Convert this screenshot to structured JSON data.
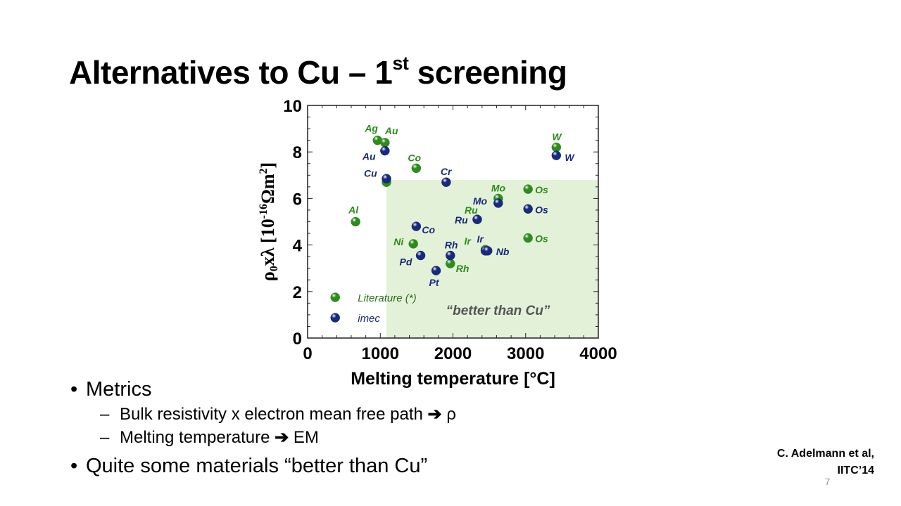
{
  "title": {
    "main": "Alternatives to Cu – 1",
    "sup": "st",
    "rest": " screening"
  },
  "chart_data": {
    "type": "scatter",
    "xlabel": "Melting temperature [°C]",
    "ylabel_parts": {
      "rho": "ρ",
      "sub0": "0",
      "x": "x",
      "lambda": "λ",
      "bracket_open": "[10",
      "exp": "-16",
      "omega": "Ωm",
      "sq": "2",
      "bracket_close": "]"
    },
    "xlim": [
      0,
      4000
    ],
    "ylim": [
      0,
      10
    ],
    "xticks": [
      0,
      1000,
      2000,
      3000,
      4000
    ],
    "yticks": [
      0,
      2,
      4,
      6,
      8,
      10
    ],
    "highlight_region": {
      "x": [
        1085,
        4000
      ],
      "y": [
        0,
        6.8
      ],
      "label": "“better than Cu”"
    },
    "legend": [
      {
        "name": "Literature (*)",
        "color": "#2e8b1e"
      },
      {
        "name": "imec",
        "color": "#1a2a7a"
      }
    ],
    "series": [
      {
        "name": "Literature (*)",
        "color": "#2e8b1e",
        "points": [
          {
            "label": "Ag",
            "x": 962,
            "y": 8.5
          },
          {
            "label": "Au",
            "x": 1064,
            "y": 8.4
          },
          {
            "label": "Co",
            "x": 1495,
            "y": 7.3
          },
          {
            "label": "Cu",
            "x": 1085,
            "y": 6.7
          },
          {
            "label": "Al",
            "x": 660,
            "y": 5.0
          },
          {
            "label": "Ni",
            "x": 1455,
            "y": 4.05
          },
          {
            "label": "Rh",
            "x": 1964,
            "y": 3.2
          },
          {
            "label": "Ir",
            "x": 2446,
            "y": 3.8
          },
          {
            "label": "Ru",
            "x": 2334,
            "y": 5.1
          },
          {
            "label": "Mo",
            "x": 2623,
            "y": 6.0
          },
          {
            "label": "Os",
            "x": 3033,
            "y": 6.4
          },
          {
            "label": "Os",
            "x": 3033,
            "y": 4.3
          },
          {
            "label": "W",
            "x": 3422,
            "y": 8.2
          }
        ]
      },
      {
        "name": "imec",
        "color": "#1a2a7a",
        "points": [
          {
            "label": "Au",
            "x": 1064,
            "y": 8.05
          },
          {
            "label": "Cu",
            "x": 1085,
            "y": 6.85
          },
          {
            "label": "Cr",
            "x": 1907,
            "y": 6.7
          },
          {
            "label": "Co",
            "x": 1495,
            "y": 4.8
          },
          {
            "label": "Pd",
            "x": 1555,
            "y": 3.55
          },
          {
            "label": "Pt",
            "x": 1768,
            "y": 2.9
          },
          {
            "label": "Rh",
            "x": 1964,
            "y": 3.55
          },
          {
            "label": "Ru",
            "x": 2334,
            "y": 5.1
          },
          {
            "label": "Mo",
            "x": 2623,
            "y": 5.8
          },
          {
            "label": "Ir",
            "x": 2446,
            "y": 3.75
          },
          {
            "label": "Nb",
            "x": 2477,
            "y": 3.75
          },
          {
            "label": "Os",
            "x": 3033,
            "y": 5.55
          },
          {
            "label": "W",
            "x": 3422,
            "y": 7.85
          }
        ]
      }
    ]
  },
  "bullets": {
    "b1": "Metrics",
    "sub1_text": "Bulk resistivity x electron mean free path",
    "sub1_sym": "ρ",
    "sub2_text": "Melting temperature",
    "sub2_sym": "EM",
    "b2": "Quite some materials “better than Cu”",
    "bullet_char": "•",
    "dash_char": "–",
    "arrow_char": "➔"
  },
  "citation": {
    "line1": "C. Adelmann et al,",
    "line2": "IITC’14"
  },
  "page_number": "7"
}
